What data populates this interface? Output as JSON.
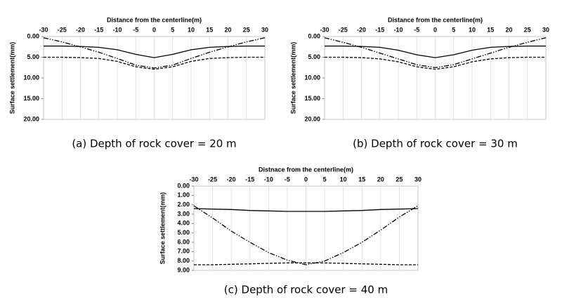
{
  "chart_data": [
    {
      "type": "line",
      "caption": "(a) Depth of rock cover = 20 m",
      "x_label": "Distance from  the centerline(m)",
      "y_label": "Surface settlement(mm)",
      "x": [
        -30,
        -25,
        -20,
        -15,
        -10,
        -5,
        0,
        5,
        10,
        15,
        20,
        25,
        30
      ],
      "xlim": [
        -30,
        30
      ],
      "xticks": [
        -30,
        -25,
        -20,
        -15,
        -10,
        -5,
        0,
        5,
        10,
        15,
        20,
        25,
        30
      ],
      "ylim": [
        0,
        20
      ],
      "y_inverted": true,
      "x_axis_top": true,
      "grid": true,
      "yticks": [
        {
          "value": 0,
          "label": "0.00"
        },
        {
          "value": 5,
          "label": "5.00"
        },
        {
          "value": 10,
          "label": "10.00"
        },
        {
          "value": 15,
          "label": "15.00"
        },
        {
          "value": 20,
          "label": "20.00"
        }
      ],
      "series": [
        {
          "color": "#000000",
          "dash": "solid",
          "values": [
            2.3,
            2.3,
            2.4,
            2.6,
            3.2,
            4.3,
            5.1,
            4.3,
            3.2,
            2.6,
            2.4,
            2.3,
            2.3
          ]
        },
        {
          "color": "#000000",
          "dash": "dashed",
          "values": [
            5.0,
            5.0,
            5.1,
            5.3,
            6.0,
            7.3,
            7.9,
            7.3,
            6.0,
            5.3,
            5.1,
            5.0,
            5.0
          ]
        },
        {
          "color": "#000000",
          "dash": "dash-dot-dot",
          "values": [
            0.3,
            1.3,
            2.5,
            3.8,
            5.3,
            6.9,
            7.6,
            6.9,
            5.3,
            3.8,
            2.5,
            1.3,
            0.3
          ]
        }
      ]
    },
    {
      "type": "line",
      "caption": "(b) Depth of rock cover = 30 m",
      "x_label": "Distance from  the centerline(m)",
      "y_label": "Surface settlement(mm)",
      "x": [
        -30,
        -25,
        -20,
        -15,
        -10,
        -5,
        0,
        5,
        10,
        15,
        20,
        25,
        30
      ],
      "xlim": [
        -30,
        30
      ],
      "xticks": [
        -30,
        -25,
        -20,
        -15,
        -10,
        -5,
        0,
        5,
        10,
        15,
        20,
        25,
        30
      ],
      "ylim": [
        0,
        20
      ],
      "y_inverted": true,
      "x_axis_top": true,
      "grid": true,
      "yticks": [
        {
          "value": 0,
          "label": "0.00"
        },
        {
          "value": 5,
          "label": "5.00"
        },
        {
          "value": 10,
          "label": "10.00"
        },
        {
          "value": 15,
          "label": "15.00"
        },
        {
          "value": 20,
          "label": "20.00"
        }
      ],
      "series": [
        {
          "color": "#000000",
          "dash": "solid",
          "values": [
            2.3,
            2.3,
            2.4,
            2.6,
            3.3,
            4.4,
            5.1,
            4.4,
            3.3,
            2.6,
            2.4,
            2.3,
            2.3
          ]
        },
        {
          "color": "#000000",
          "dash": "dashed",
          "values": [
            5.0,
            5.0,
            5.1,
            5.4,
            6.1,
            7.3,
            7.9,
            7.3,
            6.1,
            5.4,
            5.1,
            5.0,
            5.0
          ]
        },
        {
          "color": "#000000",
          "dash": "dash-dot-dot",
          "values": [
            0.3,
            1.4,
            2.6,
            4.0,
            5.4,
            6.8,
            7.5,
            6.8,
            5.4,
            4.0,
            2.6,
            1.4,
            0.3
          ]
        }
      ]
    },
    {
      "type": "line",
      "caption": "(c) Depth of rock cover = 40 m",
      "x_label": "Distnace from the centerline(m)",
      "y_label": "Surface settlement(mm)",
      "x": [
        -30,
        -25,
        -20,
        -15,
        -10,
        -5,
        0,
        5,
        10,
        15,
        20,
        25,
        30
      ],
      "xlim": [
        -30,
        30
      ],
      "xticks": [
        -30,
        -25,
        -20,
        -15,
        -10,
        -5,
        0,
        5,
        10,
        15,
        20,
        25,
        30
      ],
      "ylim": [
        0,
        9
      ],
      "y_inverted": true,
      "x_axis_top": true,
      "grid": true,
      "yticks": [
        {
          "value": 0,
          "label": "0.00"
        },
        {
          "value": 1,
          "label": "1.00"
        },
        {
          "value": 2,
          "label": "2.00"
        },
        {
          "value": 3,
          "label": "3.00"
        },
        {
          "value": 4,
          "label": "4.00"
        },
        {
          "value": 5,
          "label": "5.00"
        },
        {
          "value": 6,
          "label": "6.00"
        },
        {
          "value": 7,
          "label": "7.00"
        },
        {
          "value": 8,
          "label": "8.00"
        },
        {
          "value": 9,
          "label": "9.00"
        }
      ],
      "series": [
        {
          "color": "#000000",
          "dash": "solid",
          "values": [
            2.4,
            2.45,
            2.5,
            2.6,
            2.65,
            2.7,
            2.7,
            2.7,
            2.65,
            2.6,
            2.5,
            2.45,
            2.4
          ]
        },
        {
          "color": "#000000",
          "dash": "dashed",
          "values": [
            8.4,
            8.4,
            8.35,
            8.3,
            8.25,
            8.2,
            8.2,
            8.2,
            8.25,
            8.3,
            8.35,
            8.4,
            8.4
          ]
        },
        {
          "color": "#000000",
          "dash": "dash-dot-dot",
          "values": [
            2.1,
            3.4,
            4.8,
            6.0,
            7.1,
            7.9,
            8.4,
            8.0,
            7.1,
            6.0,
            4.7,
            3.3,
            2.1
          ]
        }
      ]
    }
  ]
}
